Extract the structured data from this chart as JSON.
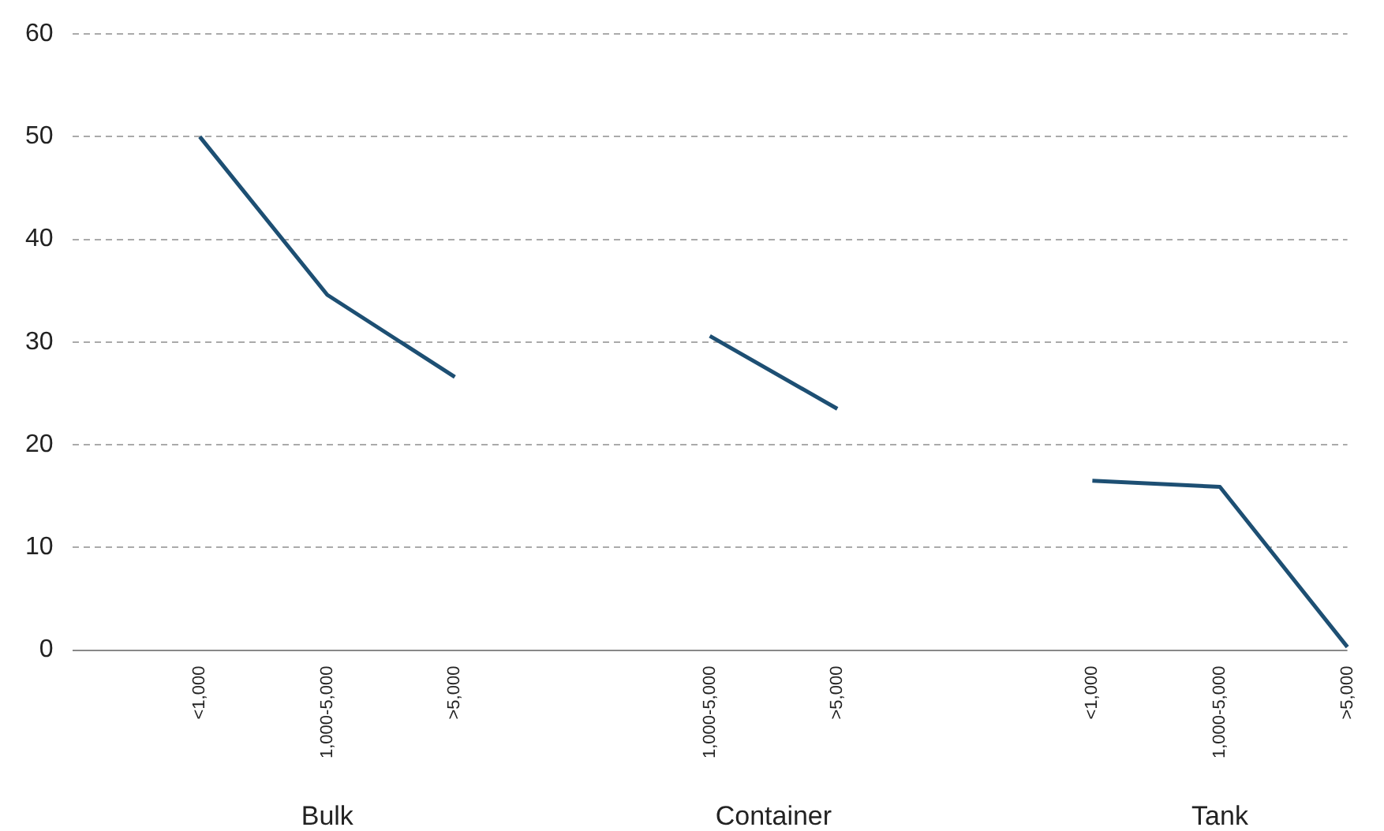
{
  "chart_data": {
    "type": "line",
    "categories": [
      null,
      "<1,000",
      "1,000-5,000",
      ">5,000",
      null,
      "1,000-5,000",
      ">5,000",
      null,
      "<1,000",
      "1,000-5,000",
      ">5,000"
    ],
    "series": [
      {
        "color": "#1d4f73",
        "values": [
          null,
          50,
          34.6,
          26.6,
          null,
          30.6,
          23.5,
          null,
          16.5,
          15.9,
          0.3
        ]
      }
    ],
    "ylim": [
      0,
      60
    ],
    "yticks": [
      0,
      10,
      20,
      30,
      40,
      50,
      60
    ],
    "grid": "y",
    "legend": false,
    "marker": "none",
    "line_style": "solid",
    "annotations": [
      "Bulk",
      "Container",
      "Tank"
    ]
  }
}
